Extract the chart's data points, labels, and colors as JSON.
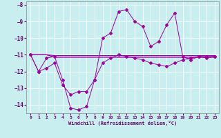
{
  "xlabel": "Windchill (Refroidissement éolien,°C)",
  "background_color": "#c8eef0",
  "grid_color": "#ffffff",
  "line_color": "#990099",
  "x": [
    0,
    1,
    2,
    3,
    4,
    5,
    6,
    7,
    8,
    9,
    10,
    11,
    12,
    13,
    14,
    15,
    16,
    17,
    18,
    19,
    20,
    21,
    22,
    23
  ],
  "series1": [
    -11.0,
    -12.0,
    -11.2,
    -11.1,
    -12.5,
    -14.2,
    -14.3,
    -14.1,
    -12.5,
    -10.0,
    -9.7,
    -8.4,
    -8.3,
    -9.0,
    -9.3,
    -10.5,
    -10.2,
    -9.2,
    -8.5,
    -11.1,
    -11.3,
    -11.1,
    -11.2,
    -11.1
  ],
  "series2": [
    -11.0,
    -11.0,
    -11.0,
    -11.05,
    -11.05,
    -11.05,
    -11.05,
    -11.05,
    -11.05,
    -11.05,
    -11.05,
    -11.05,
    -11.05,
    -11.05,
    -11.05,
    -11.05,
    -11.05,
    -11.05,
    -11.05,
    -11.05,
    -11.05,
    -11.05,
    -11.05,
    -11.05
  ],
  "series3": [
    -11.0,
    -11.0,
    -11.0,
    -11.15,
    -11.15,
    -11.15,
    -11.15,
    -11.15,
    -11.15,
    -11.15,
    -11.15,
    -11.15,
    -11.15,
    -11.15,
    -11.15,
    -11.15,
    -11.15,
    -11.15,
    -11.15,
    -11.15,
    -11.15,
    -11.15,
    -11.15,
    -11.15
  ],
  "series4": [
    -11.0,
    -12.0,
    -11.8,
    -11.5,
    -12.8,
    -13.4,
    -13.2,
    -13.2,
    -12.5,
    -11.5,
    -11.2,
    -11.0,
    -11.1,
    -11.2,
    -11.3,
    -11.5,
    -11.6,
    -11.7,
    -11.5,
    -11.3,
    -11.2,
    -11.1,
    -11.1,
    -11.1
  ],
  "ylim": [
    -14.5,
    -7.8
  ],
  "xlim": [
    -0.5,
    23.5
  ],
  "yticks": [
    -8,
    -9,
    -10,
    -11,
    -12,
    -13,
    -14
  ],
  "xticks": [
    0,
    1,
    2,
    3,
    4,
    5,
    6,
    7,
    8,
    9,
    10,
    11,
    12,
    13,
    14,
    15,
    16,
    17,
    18,
    19,
    20,
    21,
    22,
    23
  ]
}
